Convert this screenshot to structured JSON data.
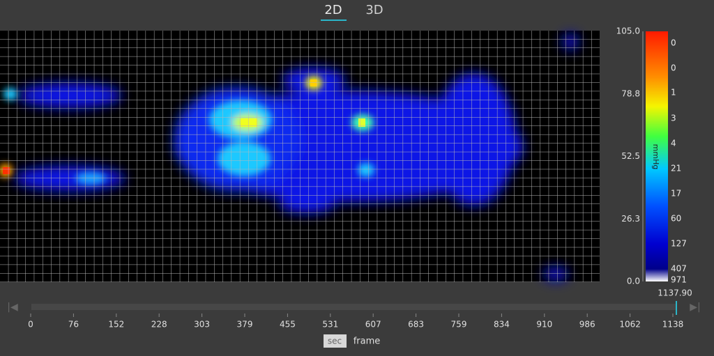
{
  "tabs": [
    "2D",
    "3D"
  ],
  "colorbar": {
    "ticks": [
      "105.0",
      "78.8",
      "52.5",
      "26.3",
      "0.0"
    ],
    "counts": [
      "0",
      "0",
      "1",
      "3",
      "4",
      "21",
      "17",
      "60",
      "127",
      "407",
      "971"
    ],
    "unit": "mmHg"
  },
  "timeline": {
    "current": "1137.90",
    "ticks": [
      "0",
      "76",
      "152",
      "228",
      "303",
      "379",
      "455",
      "531",
      "607",
      "683",
      "759",
      "834",
      "910",
      "986",
      "1062",
      "1138"
    ],
    "units": [
      "sec",
      "frame"
    ]
  }
}
